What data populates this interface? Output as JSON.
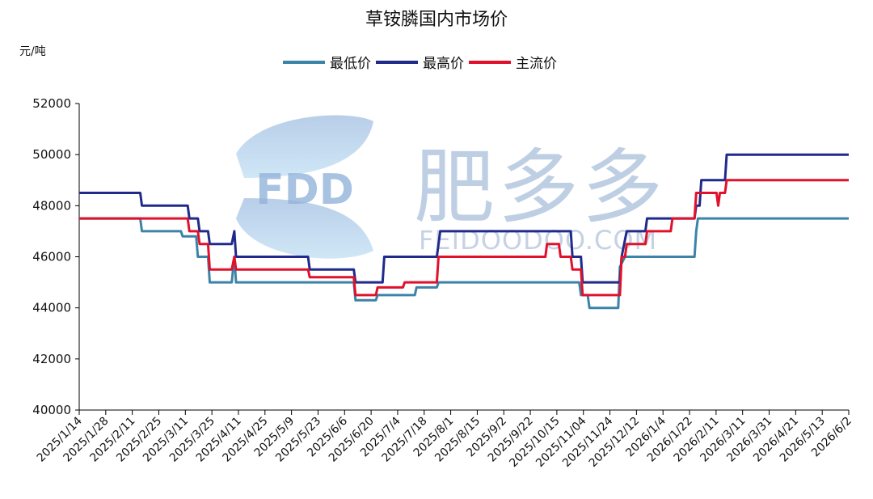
{
  "watermark": {
    "logo_text": "FDD",
    "brand": "肥多多",
    "url": "FEIDOODOO.COM"
  },
  "chart_data": {
    "type": "line",
    "title": "草铵膦国内市场价",
    "unit_label": "元/吨",
    "ylim": [
      40000,
      52000
    ],
    "yticks": [
      40000,
      42000,
      44000,
      46000,
      48000,
      50000,
      52000
    ],
    "xlim": [
      "2025-01-14",
      "2026-06-02"
    ],
    "x_tick_labels": [
      "2025/1/14",
      "2025/1/28",
      "2025/2/11",
      "2025/2/25",
      "2025/3/11",
      "2025/3/25",
      "2025/4/11",
      "2025/4/25",
      "2025/5/9",
      "2025/5/23",
      "2025/6/6",
      "2025/6/20",
      "2025/7/4",
      "2025/7/18",
      "2025/8/1",
      "2025/8/15",
      "2025/9/2",
      "2025/9/22",
      "2025/10/15",
      "2025/11/04",
      "2025/11/24",
      "2025/12/12",
      "2026/1/4",
      "2026/1/22",
      "2026/2/11",
      "2026/3/11",
      "2026/3/31",
      "2026/4/21",
      "2026/5/13",
      "2026/6/2"
    ],
    "legend_position": "top",
    "grid": false,
    "series": [
      {
        "name": "最低价",
        "color": "#3c83a8",
        "points": [
          [
            0,
            47500
          ],
          [
            3.6,
            47500
          ],
          [
            3.7,
            47000
          ],
          [
            6.0,
            47000
          ],
          [
            6.1,
            46800
          ],
          [
            6.9,
            46800
          ],
          [
            7.0,
            46000
          ],
          [
            7.6,
            46000
          ],
          [
            7.7,
            45000
          ],
          [
            9.0,
            45000
          ],
          [
            9.15,
            46000
          ],
          [
            9.25,
            45000
          ],
          [
            13.5,
            45000
          ],
          [
            16.2,
            45000
          ],
          [
            16.3,
            44300
          ],
          [
            16.9,
            44300
          ],
          [
            17.5,
            44300
          ],
          [
            17.6,
            44500
          ],
          [
            19.8,
            44500
          ],
          [
            19.9,
            44800
          ],
          [
            21.1,
            44800
          ],
          [
            21.2,
            45000
          ],
          [
            25.5,
            45000
          ],
          [
            29.5,
            45000
          ],
          [
            29.6,
            44500
          ],
          [
            30.0,
            44500
          ],
          [
            30.1,
            44000
          ],
          [
            31.8,
            44000
          ],
          [
            31.9,
            45600
          ],
          [
            32.2,
            46000
          ],
          [
            32.6,
            46000
          ],
          [
            32.7,
            46000
          ],
          [
            34.6,
            46000
          ],
          [
            34.7,
            46000
          ],
          [
            36.3,
            46000
          ],
          [
            36.4,
            47000
          ],
          [
            36.5,
            47500
          ],
          [
            40.0,
            47500
          ],
          [
            44.0,
            47500
          ],
          [
            45.0,
            47500
          ],
          [
            45.4,
            47500
          ]
        ]
      },
      {
        "name": "最高价",
        "color": "#1f2a8a",
        "points": [
          [
            0,
            48500
          ],
          [
            3.6,
            48500
          ],
          [
            3.7,
            48000
          ],
          [
            6.4,
            48000
          ],
          [
            6.5,
            47500
          ],
          [
            7.0,
            47500
          ],
          [
            7.1,
            47000
          ],
          [
            7.6,
            47000
          ],
          [
            7.7,
            46500
          ],
          [
            9.0,
            46500
          ],
          [
            9.15,
            47000
          ],
          [
            9.25,
            46000
          ],
          [
            13.5,
            46000
          ],
          [
            13.6,
            45500
          ],
          [
            16.2,
            45500
          ],
          [
            16.3,
            45000
          ],
          [
            17.9,
            45000
          ],
          [
            18.0,
            46000
          ],
          [
            19.0,
            46000
          ],
          [
            21.1,
            46000
          ],
          [
            21.3,
            47000
          ],
          [
            25.5,
            47000
          ],
          [
            29.0,
            47000
          ],
          [
            29.1,
            46000
          ],
          [
            29.6,
            46000
          ],
          [
            29.7,
            45000
          ],
          [
            31.9,
            45000
          ],
          [
            32.0,
            46000
          ],
          [
            32.3,
            47000
          ],
          [
            33.4,
            47000
          ],
          [
            33.5,
            47500
          ],
          [
            34.9,
            47500
          ],
          [
            35.0,
            47500
          ],
          [
            36.3,
            47500
          ],
          [
            36.4,
            48000
          ],
          [
            36.6,
            48000
          ],
          [
            36.7,
            49000
          ],
          [
            38.1,
            49000
          ],
          [
            38.2,
            50000
          ],
          [
            45.4,
            50000
          ]
        ]
      },
      {
        "name": "主流价",
        "color": "#e0112b",
        "points": [
          [
            0,
            47500
          ],
          [
            6.4,
            47500
          ],
          [
            6.5,
            47000
          ],
          [
            7.0,
            47000
          ],
          [
            7.1,
            46500
          ],
          [
            7.6,
            46500
          ],
          [
            7.7,
            45500
          ],
          [
            9.0,
            45500
          ],
          [
            9.15,
            46000
          ],
          [
            9.25,
            45500
          ],
          [
            13.5,
            45500
          ],
          [
            13.6,
            45200
          ],
          [
            16.2,
            45200
          ],
          [
            16.3,
            44500
          ],
          [
            17.5,
            44500
          ],
          [
            17.6,
            44800
          ],
          [
            19.1,
            44800
          ],
          [
            19.2,
            45000
          ],
          [
            21.1,
            45000
          ],
          [
            21.2,
            46000
          ],
          [
            25.5,
            46000
          ],
          [
            27.5,
            46000
          ],
          [
            27.6,
            46500
          ],
          [
            28.3,
            46500
          ],
          [
            28.4,
            46000
          ],
          [
            29.0,
            46000
          ],
          [
            29.1,
            45500
          ],
          [
            29.6,
            45500
          ],
          [
            29.7,
            44500
          ],
          [
            31.9,
            44500
          ],
          [
            32.0,
            46000
          ],
          [
            32.2,
            46000
          ],
          [
            32.3,
            46500
          ],
          [
            33.4,
            46500
          ],
          [
            33.5,
            47000
          ],
          [
            34.9,
            47000
          ],
          [
            35.0,
            47500
          ],
          [
            36.3,
            47500
          ],
          [
            36.4,
            48500
          ],
          [
            37.6,
            48500
          ],
          [
            37.7,
            48000
          ],
          [
            37.8,
            48500
          ],
          [
            38.1,
            48500
          ],
          [
            38.2,
            49000
          ],
          [
            45.4,
            49000
          ]
        ]
      }
    ]
  }
}
